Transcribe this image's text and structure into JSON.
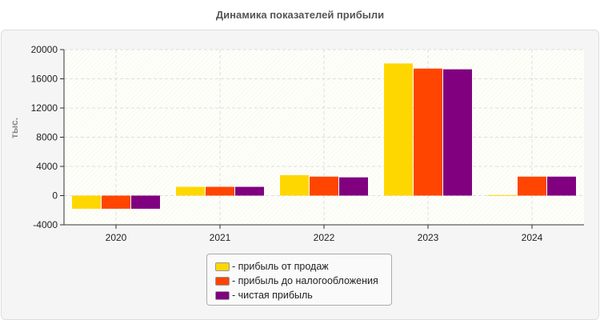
{
  "chart_data": {
    "type": "bar",
    "title": "Динамика показателей прибыли",
    "ylabel": "тыс.",
    "xlabel": "",
    "ylim": [
      -4000,
      20000
    ],
    "yticks": [
      -4000,
      0,
      4000,
      8000,
      12000,
      16000,
      20000
    ],
    "grid": true,
    "legend_position": "bottom",
    "categories": [
      "2020",
      "2021",
      "2022",
      "2023",
      "2024"
    ],
    "series": [
      {
        "name": "- прибыль от продаж",
        "color": "#FFD700",
        "values": [
          -1800,
          1200,
          2800,
          18100,
          80
        ]
      },
      {
        "name": "- прибыль до налогообложения",
        "color": "#FF4500",
        "values": [
          -1800,
          1200,
          2600,
          17400,
          2600
        ]
      },
      {
        "name": "- чистая прибыль",
        "color": "#800080",
        "values": [
          -1800,
          1200,
          2500,
          17300,
          2600
        ]
      }
    ]
  }
}
